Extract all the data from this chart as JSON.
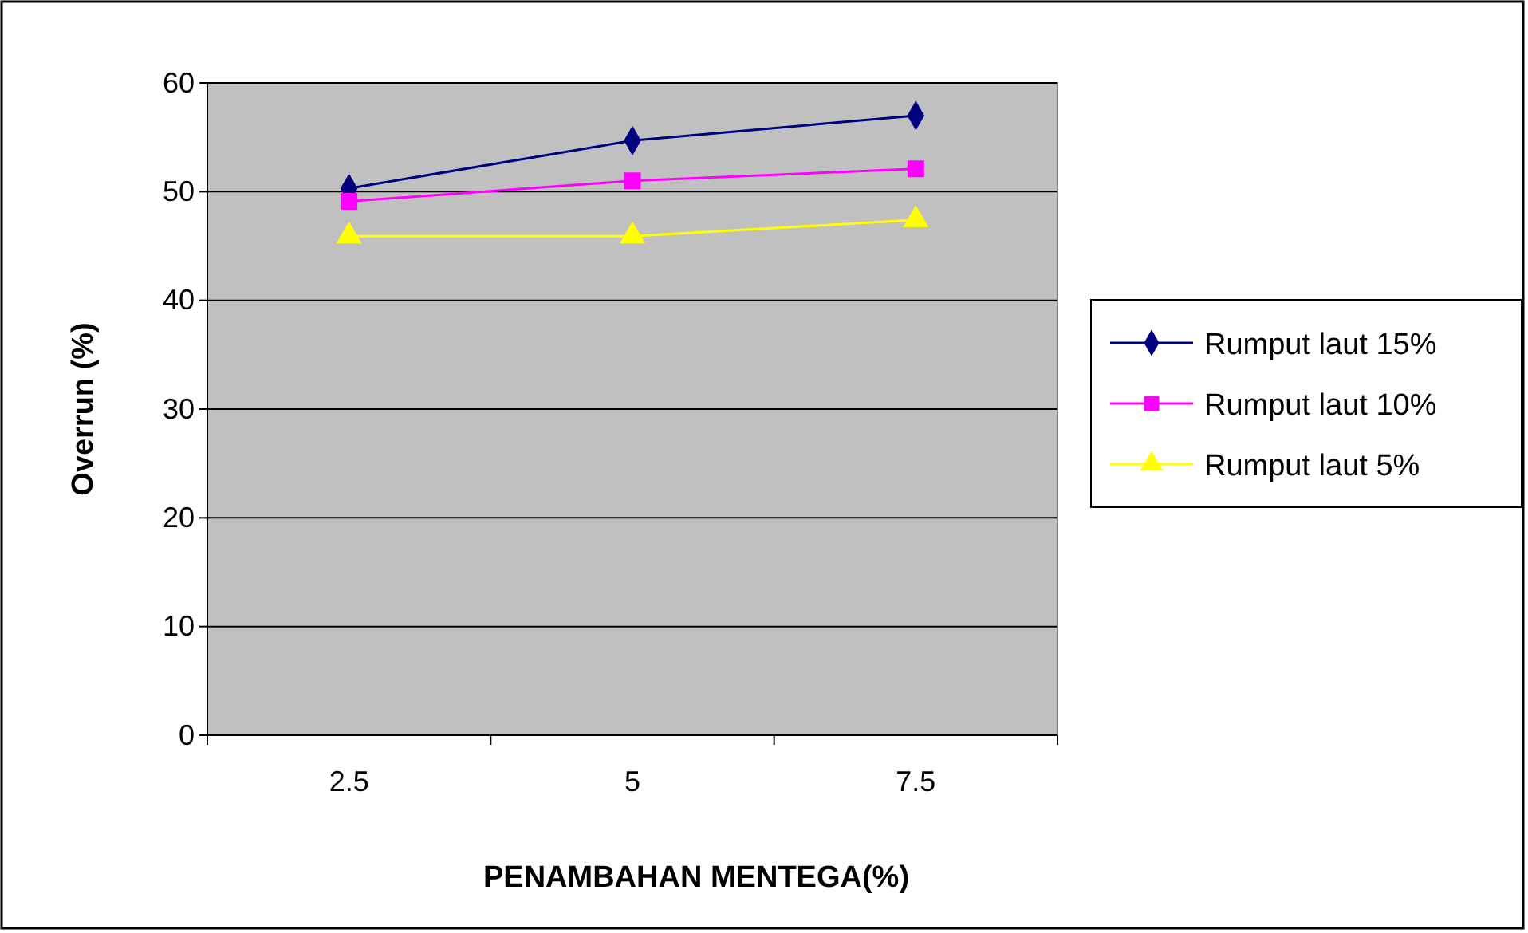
{
  "chart_data": {
    "type": "line",
    "xlabel": "PENAMBAHAN MENTEGA(%)",
    "ylabel": "Overrun (%)",
    "categories": [
      "2.5",
      "5",
      "7.5"
    ],
    "series": [
      {
        "name": "Rumput laut 15%",
        "color": "#000080",
        "marker": "diamond",
        "values": [
          50.3,
          54.7,
          57.0
        ]
      },
      {
        "name": "Rumput laut 10%",
        "color": "#ff00ff",
        "marker": "square",
        "values": [
          49.1,
          51.0,
          52.1
        ]
      },
      {
        "name": "Rumput laut 5%",
        "color": "#ffff00",
        "marker": "triangle",
        "values": [
          45.9,
          45.9,
          47.4
        ]
      }
    ],
    "ylim": [
      0,
      60
    ],
    "yticks": [
      0,
      10,
      20,
      30,
      40,
      50,
      60
    ],
    "grid": "y",
    "legend": "right"
  }
}
